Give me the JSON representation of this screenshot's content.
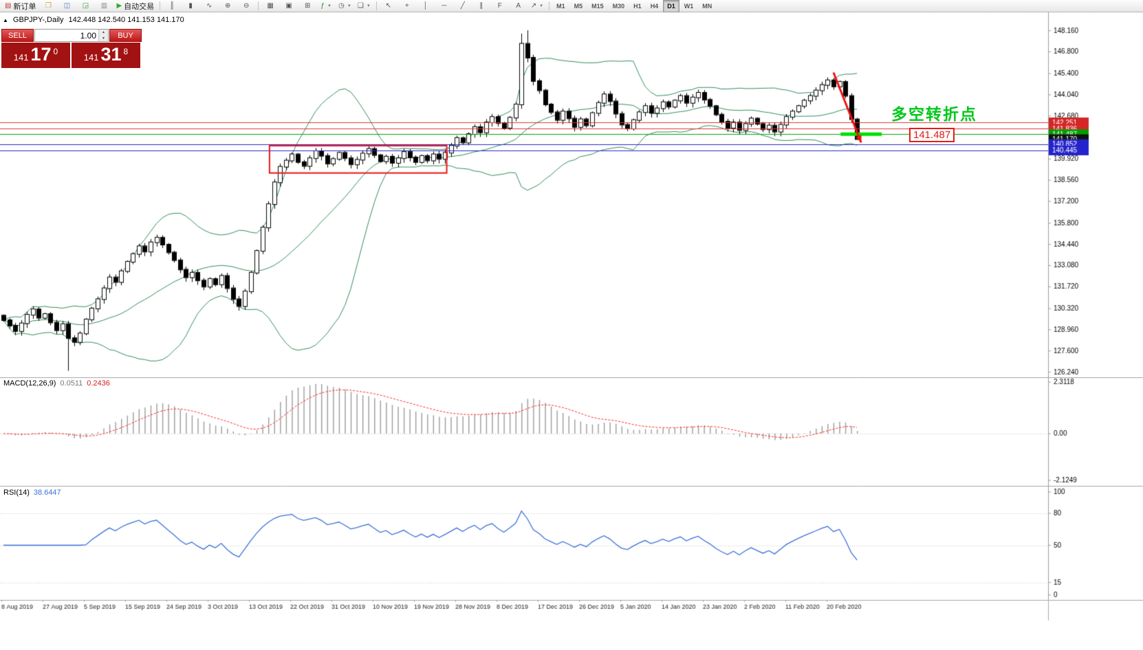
{
  "toolbar": {
    "groups": [
      {
        "items": [
          {
            "name": "new-order-button",
            "glyph": "▤",
            "glyph_color": "#c23a3a",
            "label": "新订单"
          },
          {
            "name": "chart-profiles-icon",
            "glyph": "❒",
            "glyph_color": "#c9a23c"
          },
          {
            "name": "market-watch-icon",
            "glyph": "◫",
            "glyph_color": "#4a7ab5"
          },
          {
            "name": "data-window-icon",
            "glyph": "◲",
            "glyph_color": "#3f9b3f"
          },
          {
            "name": "terminal-icon",
            "glyph": "▥",
            "glyph_color": "#8a8a8a"
          },
          {
            "name": "autotrading-button",
            "glyph": "▶",
            "glyph_color": "#2eae2e",
            "label": "自动交易"
          }
        ]
      },
      {
        "items": [
          {
            "name": "bar-chart-icon",
            "glyph": "║"
          },
          {
            "name": "candlestick-chart-icon",
            "glyph": "▮"
          },
          {
            "name": "line-chart-icon",
            "glyph": "∿"
          },
          {
            "name": "zoom-in-icon",
            "glyph": "⊕"
          },
          {
            "name": "zoom-out-icon",
            "glyph": "⊖"
          }
        ]
      },
      {
        "items": [
          {
            "name": "tile-windows-icon",
            "glyph": "▦"
          },
          {
            "name": "auto-scroll-icon",
            "glyph": "▣"
          },
          {
            "name": "chart-shift-icon",
            "glyph": "⊞"
          },
          {
            "name": "indicators-icon",
            "glyph": "ƒ",
            "glyph_color": "#2a8a2a",
            "caret": true
          },
          {
            "name": "periods-icon",
            "glyph": "◷",
            "caret": true
          },
          {
            "name": "templates-icon",
            "glyph": "❏",
            "caret": true
          }
        ]
      },
      {
        "items": [
          {
            "name": "cursor-icon",
            "glyph": "↖"
          },
          {
            "name": "crosshair-icon",
            "glyph": "+"
          },
          {
            "name": "vertical-line-icon",
            "glyph": "│"
          },
          {
            "name": "horizontal-line-icon",
            "glyph": "─"
          },
          {
            "name": "trendline-icon",
            "glyph": "╱"
          },
          {
            "name": "channel-icon",
            "glyph": "∥"
          },
          {
            "name": "fibonacci-icon",
            "glyph": "F"
          },
          {
            "name": "text-label-icon",
            "glyph": "A"
          },
          {
            "name": "arrows-icon",
            "glyph": "↗",
            "caret": true
          }
        ]
      }
    ],
    "timeframes": {
      "items": [
        "M1",
        "M5",
        "M15",
        "M30",
        "H1",
        "H4",
        "D1",
        "W1",
        "MN"
      ],
      "active": "D1"
    }
  },
  "chart": {
    "collapse_icon": "▲",
    "symbol_title": "GBPJPY-,Daily",
    "ohlc": "142.448 142.540 141.153 141.170",
    "trade_panel": {
      "sell_label": "SELL",
      "buy_label": "BUY",
      "volume": "1.00",
      "stepper_up": "▲",
      "stepper_down": "▼",
      "bid": {
        "big": "141",
        "pips": "17",
        "frac": "0"
      },
      "ask": {
        "big": "141",
        "pips": "31",
        "frac": "8"
      }
    },
    "annotations": {
      "turning_point_text": "多空转折点",
      "price_label": "141.487"
    }
  },
  "macd_panel": {
    "name": "MACD(12,26,9)",
    "value_main": "0.0511",
    "value_signal": "0.2436",
    "axis": [
      "2.3118",
      "0.00",
      "-2.1249"
    ]
  },
  "rsi_panel": {
    "name": "RSI(14)",
    "value": "38.6447",
    "axis": [
      "100",
      "80",
      "50",
      "15",
      "0"
    ]
  },
  "chart_data": {
    "type": "candlestick",
    "symbol": "GBPJPY",
    "timeframe": "Daily",
    "ylim": [
      125.89,
      149.31
    ],
    "closes": [
      129.55,
      129.2,
      128.85,
      129.35,
      129.9,
      130.25,
      129.7,
      129.95,
      129.4,
      128.9,
      129.3,
      128.4,
      128.15,
      128.7,
      129.6,
      130.3,
      130.9,
      131.6,
      132.3,
      132.0,
      132.7,
      133.3,
      133.8,
      134.3,
      133.95,
      134.55,
      134.85,
      134.4,
      133.9,
      133.4,
      132.8,
      132.3,
      132.6,
      132.1,
      131.7,
      132.2,
      131.85,
      132.4,
      131.6,
      130.9,
      130.45,
      131.4,
      132.6,
      134.0,
      135.5,
      137.0,
      138.4,
      139.4,
      139.8,
      140.2,
      139.7,
      139.45,
      139.95,
      140.4,
      140.1,
      139.6,
      139.9,
      140.3,
      139.95,
      139.55,
      139.85,
      140.25,
      140.55,
      140.15,
      139.75,
      140.05,
      139.65,
      139.95,
      140.35,
      140.0,
      139.7,
      140.1,
      139.8,
      140.2,
      139.9,
      140.3,
      140.75,
      141.25,
      140.95,
      141.5,
      141.95,
      141.6,
      142.25,
      142.6,
      142.2,
      141.9,
      142.55,
      143.4,
      147.3,
      146.4,
      144.9,
      144.3,
      143.4,
      142.9,
      142.4,
      142.95,
      142.5,
      141.95,
      142.45,
      142.05,
      142.85,
      143.5,
      144.05,
      143.6,
      142.8,
      142.1,
      141.85,
      142.4,
      142.9,
      143.3,
      142.85,
      143.15,
      143.55,
      143.25,
      143.65,
      143.95,
      143.5,
      143.85,
      144.15,
      143.7,
      143.3,
      142.75,
      142.3,
      141.9,
      142.25,
      141.75,
      142.15,
      142.5,
      142.15,
      141.8,
      142.05,
      141.65,
      142.1,
      142.6,
      142.95,
      143.3,
      143.65,
      143.95,
      144.3,
      144.65,
      144.95,
      144.55,
      144.85,
      143.95,
      142.45,
      141.17
    ],
    "overrides": [
      {
        "i": 11,
        "low": 126.3
      },
      {
        "i": 88,
        "high": 147.95
      },
      {
        "i": 89,
        "high": 148.16
      },
      {
        "i": 145,
        "open": 142.448,
        "high": 142.54,
        "low": 141.153,
        "close": 141.17
      }
    ],
    "bollinger": {
      "period": 20,
      "deviation": 2
    },
    "macd": {
      "fast": 12,
      "slow": 26,
      "signal": 9,
      "ylim": [
        -2.1249,
        2.3118
      ]
    },
    "rsi": {
      "period": 14,
      "levels": [
        80,
        50,
        15
      ],
      "ylim": [
        0,
        100
      ]
    },
    "price_axis_labels": [
      148.16,
      146.8,
      145.4,
      144.04,
      142.68,
      141.32,
      139.92,
      138.56,
      137.2,
      135.8,
      134.44,
      133.08,
      131.72,
      130.32,
      128.96,
      127.6,
      126.24
    ],
    "date_labels": [
      "8 Aug 2019",
      "27 Aug 2019",
      "5 Sep 2019",
      "15 Sep 2019",
      "24 Sep 2019",
      "3 Oct 2019",
      "13 Oct 2019",
      "22 Oct 2019",
      "31 Oct 2019",
      "10 Nov 2019",
      "19 Nov 2019",
      "28 Nov 2019",
      "8 Dec 2019",
      "17 Dec 2019",
      "26 Dec 2019",
      "5 Jan 2020",
      "14 Jan 2020",
      "23 Jan 2020",
      "2 Feb 2020",
      "11 Feb 2020",
      "20 Feb 2020"
    ],
    "level_lines": [
      {
        "price": 142.251,
        "color": "#e03232",
        "tag_bg": "#d42626"
      },
      {
        "price": 141.836,
        "color": "#e03232",
        "tag_bg": "#d42626"
      },
      {
        "price": 141.487,
        "color": "#00a000",
        "tag_bg": "#00a000"
      },
      {
        "price": 141.17,
        "color": null,
        "tag_bg": "#111111"
      },
      {
        "price": 140.852,
        "color": "#2424cc",
        "tag_bg": "#2424cc"
      },
      {
        "price": 140.445,
        "color": "#2424cc",
        "tag_bg": "#2424cc"
      }
    ],
    "drawings": {
      "red_box": {
        "i1": 45.2,
        "i2": 75.3,
        "p_top": 140.75,
        "p_bottom": 139.0,
        "color": "#ee1212"
      },
      "green_segment": {
        "price": 141.487,
        "i1": 142.2,
        "i2": 149.2,
        "color": "#00e000",
        "width": 5
      },
      "red_arrow": {
        "i1": 141.0,
        "p1": 145.45,
        "i2": 145.7,
        "p2": 140.95,
        "color": "#ee1212"
      }
    },
    "colors": {
      "up": "#ffffff",
      "down": "#000000",
      "outline": "#000000",
      "bollinger": "#2e8b57",
      "macd_hist": "#9a9a9a",
      "macd_signal": "#ff2222",
      "rsi": "#3a6fd8",
      "axis_border": "#9a9a9a",
      "grid": "#c8c8c8"
    }
  }
}
